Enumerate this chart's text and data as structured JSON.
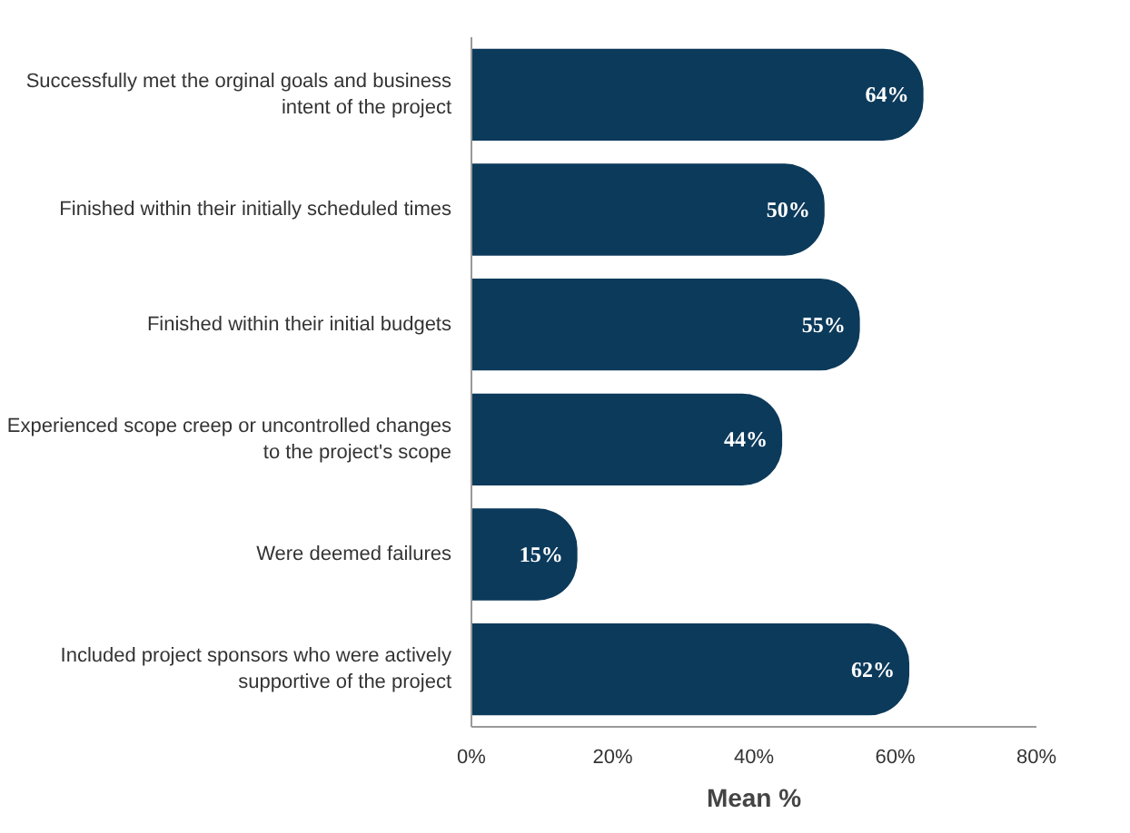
{
  "chart_data": {
    "type": "bar",
    "orientation": "horizontal",
    "xlabel": "Mean %",
    "categories": [
      "Successfully met the orginal goals and business intent of the project",
      "Finished within their initially scheduled times",
      "Finished within their initial budgets",
      "Experienced scope creep or uncontrolled changes to the project's scope",
      "Were deemed failures",
      "Included project sponsors who were actively supportive of the project"
    ],
    "values": [
      64,
      50,
      55,
      44,
      15,
      62
    ],
    "value_labels": [
      "64%",
      "50%",
      "55%",
      "44%",
      "15%",
      "62%"
    ],
    "color": "#0c3a5b",
    "xlim": [
      0,
      80
    ],
    "xticks": [
      {
        "value": 0,
        "label": "0%"
      },
      {
        "value": 20,
        "label": "20%"
      },
      {
        "value": 40,
        "label": "40%"
      },
      {
        "value": 60,
        "label": "60%"
      },
      {
        "value": 80,
        "label": "80%"
      }
    ],
    "grid": false
  }
}
